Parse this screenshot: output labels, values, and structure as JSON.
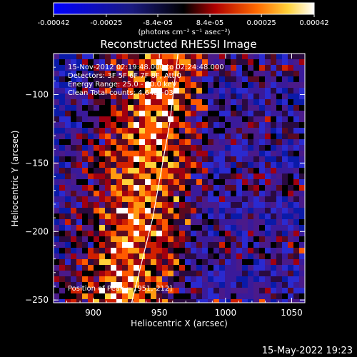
{
  "colorbar": {
    "tick_labels": [
      "-0.00042",
      "-0.00025",
      "-8.4e-05",
      "8.4e-05",
      "0.00025",
      "0.00042"
    ],
    "range": [
      -0.00042,
      0.00042
    ],
    "units_label": "(photons cm⁻² s⁻¹ asec⁻²)"
  },
  "chart_data": {
    "type": "heatmap",
    "title": "Reconstructed RHESSI Image",
    "xlabel": "Heliocentric X (arcsec)",
    "ylabel": "Heliocentric Y (arcsec)",
    "xlim": [
      870,
      1060
    ],
    "ylim": [
      -252,
      -70
    ],
    "x_ticks": [
      "900",
      "950",
      "1000",
      "1050"
    ],
    "y_ticks": [
      "-100",
      "-150",
      "-200",
      "-250"
    ],
    "annotations": [
      "15-Nov-2012 02:19:48.000 to 02:24:48.000",
      "Detectors: 3F 5F 6F 7F 8F, Att 0",
      "Energy Range: 25.0 - 50.0 keV",
      "Clean     Total counts: 4.64E+03"
    ],
    "peak_label": "Position of Peak = [951,-212]",
    "peak_position": [
      951,
      -212
    ],
    "limb_curve": [
      [
        929,
        -252
      ],
      [
        945,
        -190
      ],
      [
        958,
        -120
      ],
      [
        964,
        -70
      ]
    ]
  },
  "footer": {
    "timestamp": "15-May-2022 19:23"
  }
}
